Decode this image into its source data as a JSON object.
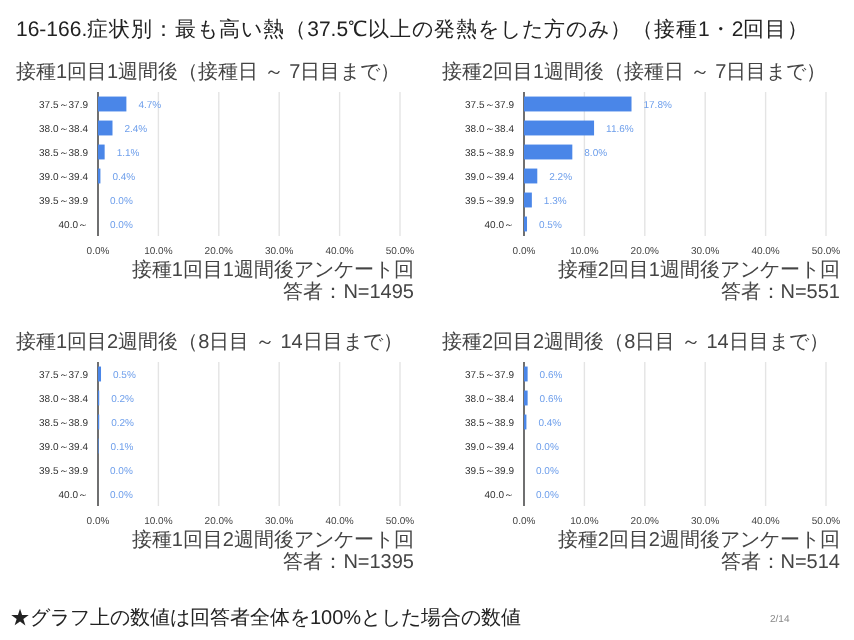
{
  "chart_data": [
    {
      "type": "bar",
      "orientation": "horizontal",
      "title": "接種1回目1週間後（接種日 ～ 7日目まで）",
      "annotations": [
        "16-166.症状別：最も高い熱（37.5℃以上の発熱をした方のみ）（接種1・2回目）",
        "接種1回目1週間後アンケート回答者：N=1495"
      ],
      "categories": [
        "37.5～37.9",
        "38.0～38.4",
        "38.5～38.9",
        "39.0～39.4",
        "39.5～39.9",
        "40.0～"
      ],
      "values": [
        4.7,
        2.4,
        1.1,
        0.4,
        0.0,
        0.0
      ],
      "value_labels": [
        "4.7%",
        "2.4%",
        "1.1%",
        "0.4%",
        "0.0%",
        "0.0%"
      ],
      "color": "#4a86e8",
      "xlim": [
        0,
        50
      ],
      "xticks": [
        {
          "value": 0,
          "label": "0.0%"
        },
        {
          "value": 10,
          "label": "10.0%"
        },
        {
          "value": 20,
          "label": "20.0%"
        },
        {
          "value": 30,
          "label": "30.0%"
        },
        {
          "value": 40,
          "label": "40.0%"
        },
        {
          "value": 50,
          "label": "50.0%"
        }
      ],
      "grid": "x"
    },
    {
      "type": "bar",
      "orientation": "horizontal",
      "title": "接種2回目1週間後（接種日 ～ 7日目まで）",
      "annotations": [
        "接種2回目1週間後アンケート回答者：N=551"
      ],
      "categories": [
        "37.5～37.9",
        "38.0～38.4",
        "38.5～38.9",
        "39.0～39.4",
        "39.5～39.9",
        "40.0～"
      ],
      "values": [
        17.8,
        11.6,
        8.0,
        2.2,
        1.3,
        0.5
      ],
      "value_labels": [
        "17.8%",
        "11.6%",
        "8.0%",
        "2.2%",
        "1.3%",
        "0.5%"
      ],
      "color": "#4a86e8",
      "xlim": [
        0,
        50
      ],
      "xticks": [
        {
          "value": 0,
          "label": "0.0%"
        },
        {
          "value": 10,
          "label": "10.0%"
        },
        {
          "value": 20,
          "label": "20.0%"
        },
        {
          "value": 30,
          "label": "30.0%"
        },
        {
          "value": 40,
          "label": "40.0%"
        },
        {
          "value": 50,
          "label": "50.0%"
        }
      ],
      "grid": "x"
    },
    {
      "type": "bar",
      "orientation": "horizontal",
      "title": "接種1回目2週間後（8日目 ～ 14日目まで）",
      "annotations": [
        "接種1回目2週間後アンケート回答者：N=1395"
      ],
      "categories": [
        "37.5～37.9",
        "38.0～38.4",
        "38.5～38.9",
        "39.0～39.4",
        "39.5～39.9",
        "40.0～"
      ],
      "values": [
        0.5,
        0.2,
        0.2,
        0.1,
        0.0,
        0.0
      ],
      "value_labels": [
        "0.5%",
        "0.2%",
        "0.2%",
        "0.1%",
        "0.0%",
        "0.0%"
      ],
      "color": "#4a86e8",
      "xlim": [
        0,
        50
      ],
      "xticks": [
        {
          "value": 0,
          "label": "0.0%"
        },
        {
          "value": 10,
          "label": "10.0%"
        },
        {
          "value": 20,
          "label": "20.0%"
        },
        {
          "value": 30,
          "label": "30.0%"
        },
        {
          "value": 40,
          "label": "40.0%"
        },
        {
          "value": 50,
          "label": "50.0%"
        }
      ],
      "grid": "x"
    },
    {
      "type": "bar",
      "orientation": "horizontal",
      "title": "接種2回目2週間後（8日目 ～ 14日目まで）",
      "annotations": [
        "接種2回目2週間後アンケート回答者：N=514",
        "★グラフ上の数値は回答者全体を100%とした場合の数値",
        "2/14"
      ],
      "categories": [
        "37.5～37.9",
        "38.0～38.4",
        "38.5～38.9",
        "39.0～39.4",
        "39.5～39.9",
        "40.0～"
      ],
      "values": [
        0.6,
        0.6,
        0.4,
        0.0,
        0.0,
        0.0
      ],
      "value_labels": [
        "0.6%",
        "0.6%",
        "0.4%",
        "0.0%",
        "0.0%",
        "0.0%"
      ],
      "color": "#4a86e8",
      "xlim": [
        0,
        50
      ],
      "xticks": [
        {
          "value": 0,
          "label": "0.0%"
        },
        {
          "value": 10,
          "label": "10.0%"
        },
        {
          "value": 20,
          "label": "20.0%"
        },
        {
          "value": 30,
          "label": "30.0%"
        },
        {
          "value": 40,
          "label": "40.0%"
        },
        {
          "value": 50,
          "label": "50.0%"
        }
      ],
      "grid": "x"
    }
  ]
}
